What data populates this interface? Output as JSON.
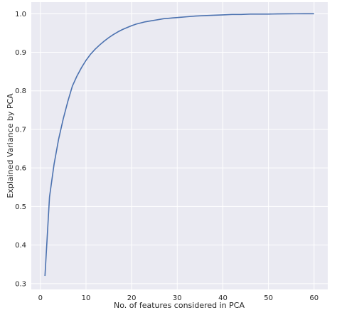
{
  "chart_data": {
    "type": "line",
    "title": "",
    "xlabel": "No. of features considered in PCA",
    "ylabel": "Explained Variance by PCA",
    "xlim": [
      -2,
      63
    ],
    "ylim": [
      0.285,
      1.03
    ],
    "x_ticks": [
      0,
      10,
      20,
      30,
      40,
      50,
      60
    ],
    "y_ticks": [
      0.3,
      0.4,
      0.5,
      0.6,
      0.7,
      0.8,
      0.9,
      1.0
    ],
    "x_tick_labels": [
      "0",
      "10",
      "20",
      "30",
      "40",
      "50",
      "60"
    ],
    "y_tick_labels": [
      "0.3",
      "0.4",
      "0.5",
      "0.6",
      "0.7",
      "0.8",
      "0.9",
      "1.0"
    ],
    "grid": true,
    "background": "#eaeaf2",
    "grid_color": "#ffffff",
    "line_color": "#4c72b0",
    "series": [
      {
        "x": [
          1,
          2,
          3,
          4,
          5,
          6,
          7,
          8,
          9,
          10,
          11,
          12,
          13,
          14,
          15,
          16,
          17,
          18,
          19,
          20,
          21,
          22,
          23,
          24,
          25,
          26,
          27,
          28,
          29,
          30,
          32,
          34,
          36,
          38,
          40,
          42,
          44,
          46,
          48,
          50,
          52,
          54,
          56,
          58,
          60
        ],
        "values": [
          0.32,
          0.525,
          0.61,
          0.675,
          0.727,
          0.772,
          0.812,
          0.838,
          0.86,
          0.879,
          0.895,
          0.908,
          0.919,
          0.929,
          0.938,
          0.946,
          0.953,
          0.959,
          0.964,
          0.969,
          0.973,
          0.976,
          0.979,
          0.981,
          0.983,
          0.985,
          0.987,
          0.988,
          0.989,
          0.99,
          0.992,
          0.994,
          0.995,
          0.996,
          0.997,
          0.998,
          0.998,
          0.999,
          0.999,
          0.999,
          0.9995,
          0.9997,
          0.9998,
          0.9999,
          1.0
        ]
      }
    ]
  }
}
